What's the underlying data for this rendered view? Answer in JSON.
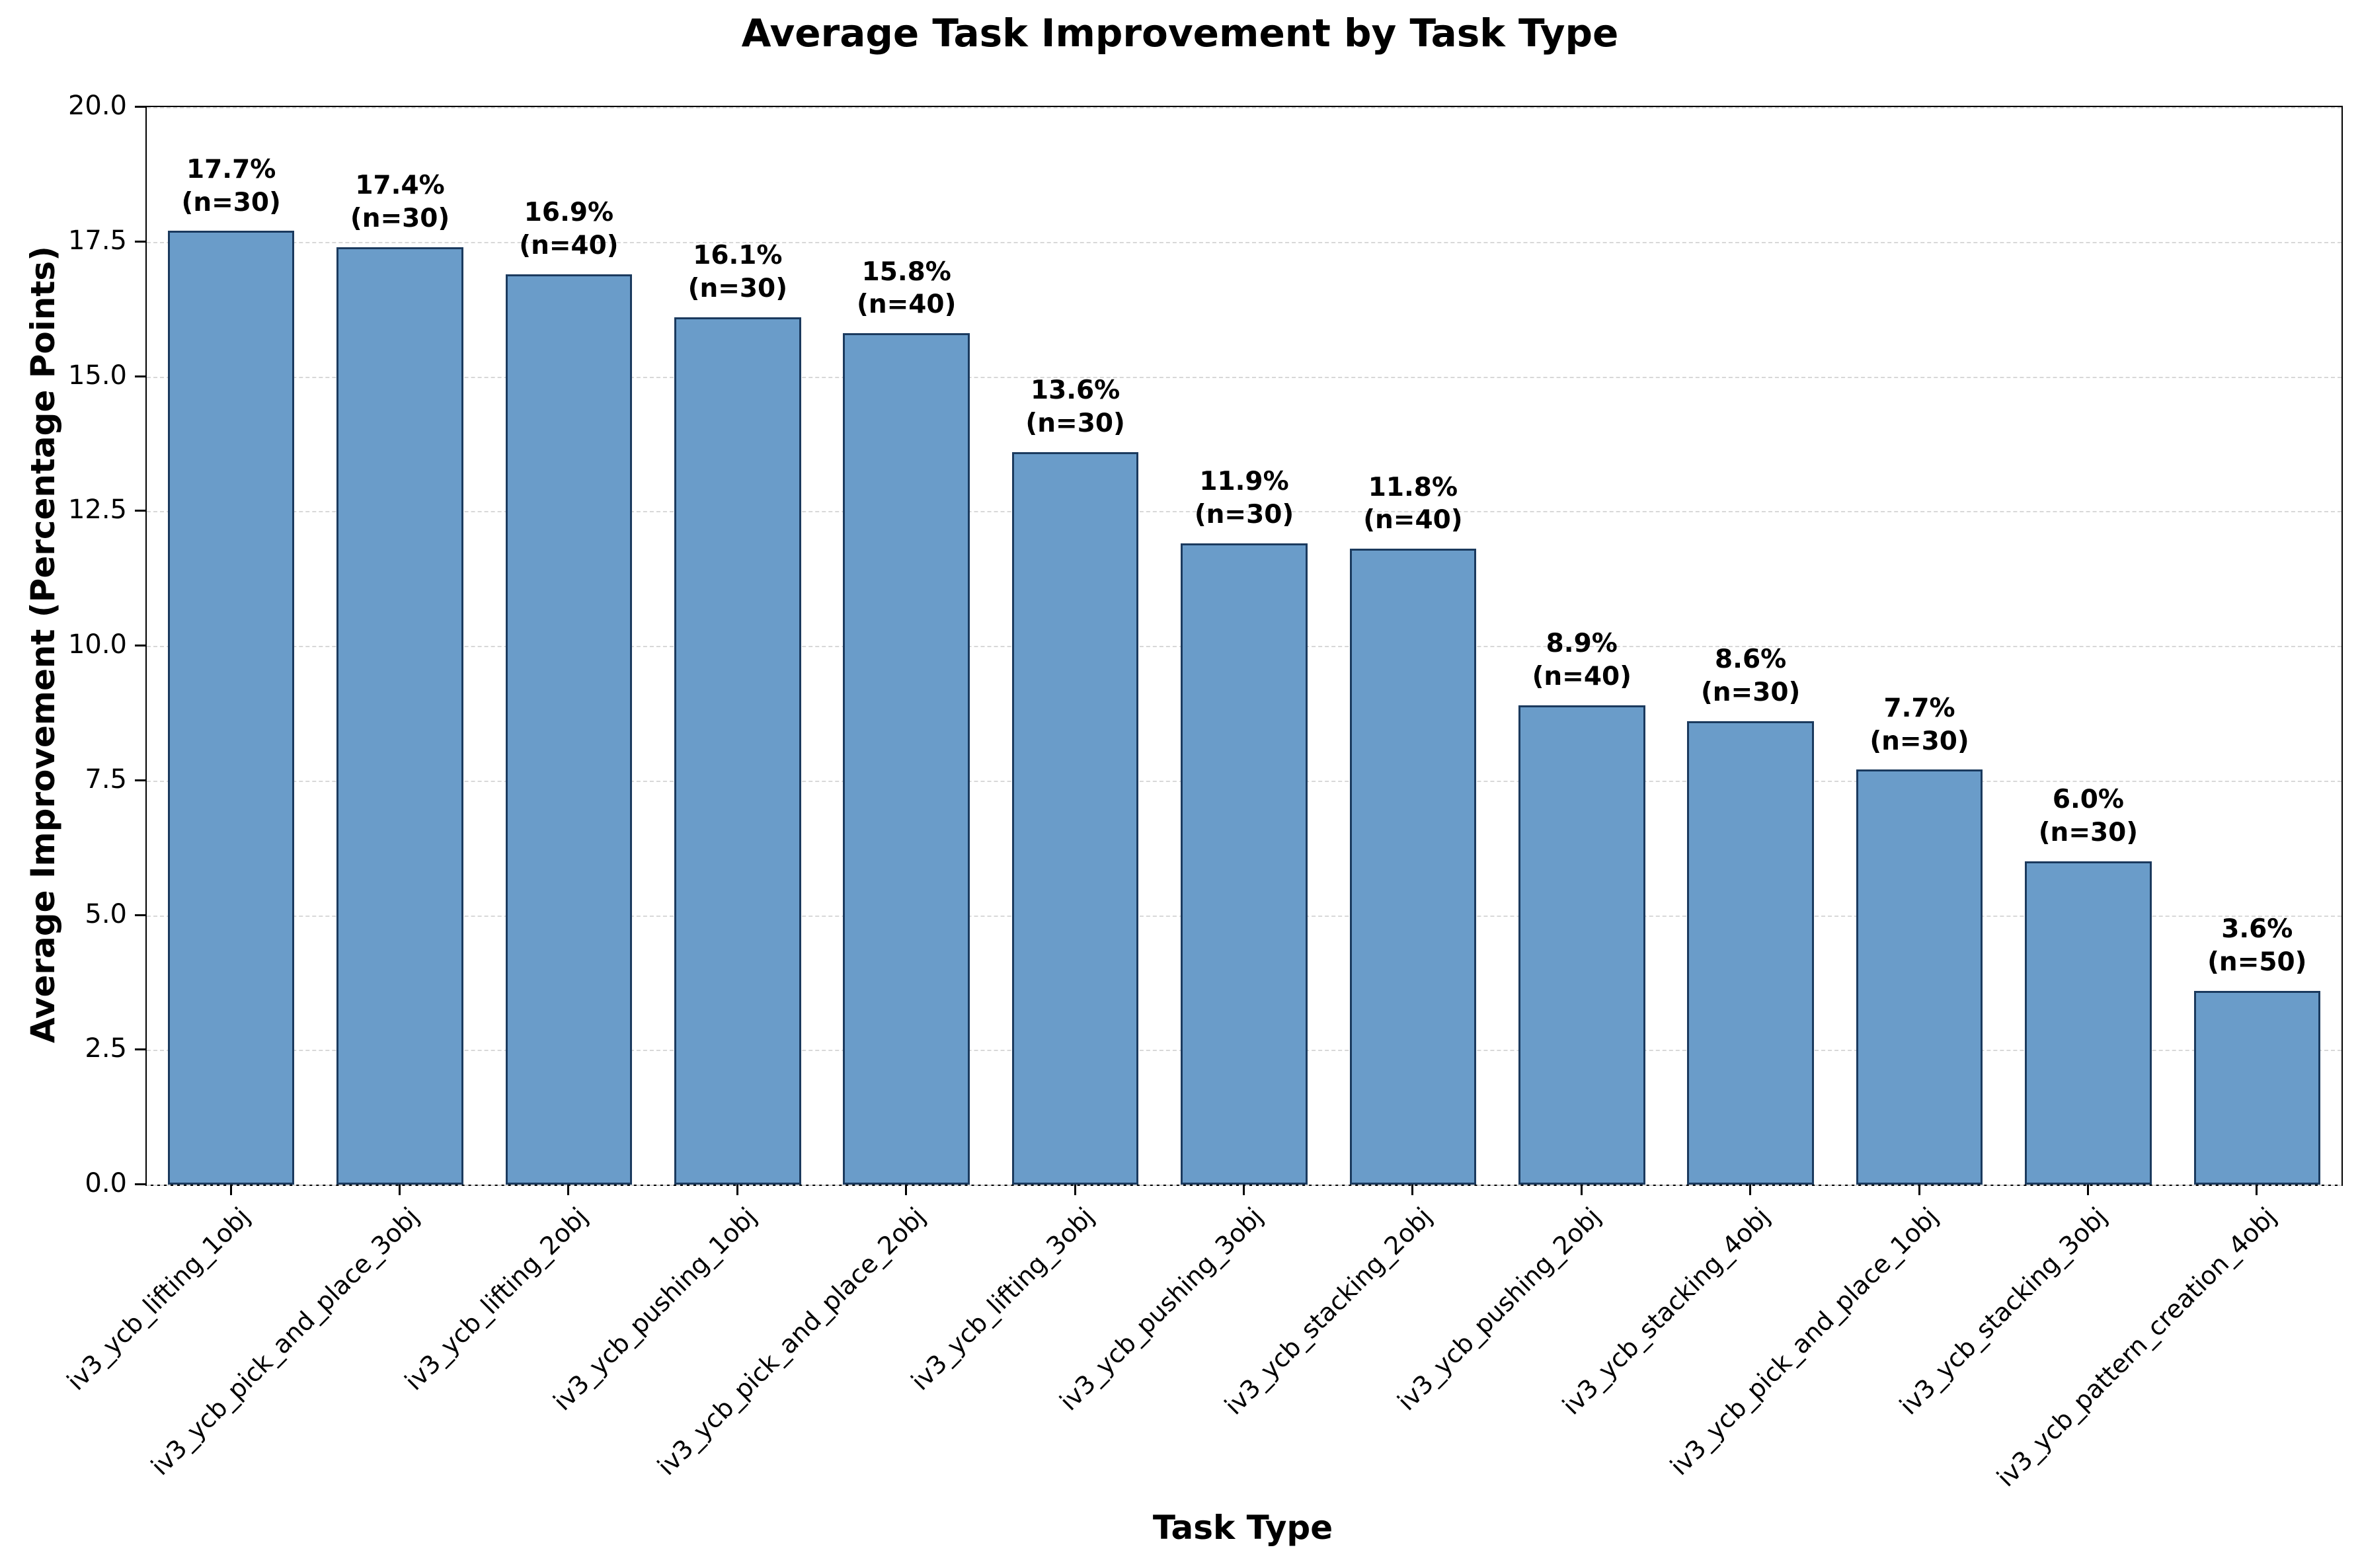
{
  "title": "Average Task Improvement by Task Type",
  "chart_data": {
    "type": "bar",
    "title": "Average Task Improvement by Task Type",
    "xlabel": "Task Type",
    "ylabel": "Average Improvement (Percentage Points)",
    "ylim": [
      0,
      20
    ],
    "ytick_labels": [
      "0.0",
      "2.5",
      "5.0",
      "7.5",
      "10.0",
      "12.5",
      "15.0",
      "17.5",
      "20.0"
    ],
    "grid": "horizontal-dashed",
    "legend": "none",
    "bar_color": "#6a9cc9",
    "bar_edge_color": "#1b3a5e",
    "categories": [
      "iv3_ycb_lifting_1obj",
      "iv3_ycb_pick_and_place_3obj",
      "iv3_ycb_lifting_2obj",
      "iv3_ycb_pushing_1obj",
      "iv3_ycb_pick_and_place_2obj",
      "iv3_ycb_lifting_3obj",
      "iv3_ycb_pushing_3obj",
      "iv3_ycb_stacking_2obj",
      "iv3_ycb_pushing_2obj",
      "iv3_ycb_stacking_4obj",
      "iv3_ycb_pick_and_place_1obj",
      "iv3_ycb_stacking_3obj",
      "iv3_ycb_pattern_creation_4obj"
    ],
    "values": [
      17.7,
      17.4,
      16.9,
      16.1,
      15.8,
      13.6,
      11.9,
      11.8,
      8.9,
      8.6,
      7.7,
      6.0,
      3.6
    ],
    "sample_sizes": [
      30,
      30,
      40,
      30,
      40,
      30,
      30,
      40,
      40,
      30,
      30,
      30,
      50
    ],
    "bar_annotations": [
      {
        "pct_label": "17.7%",
        "n_label": "(n=30)"
      },
      {
        "pct_label": "17.4%",
        "n_label": "(n=30)"
      },
      {
        "pct_label": "16.9%",
        "n_label": "(n=40)"
      },
      {
        "pct_label": "16.1%",
        "n_label": "(n=30)"
      },
      {
        "pct_label": "15.8%",
        "n_label": "(n=40)"
      },
      {
        "pct_label": "13.6%",
        "n_label": "(n=30)"
      },
      {
        "pct_label": "11.9%",
        "n_label": "(n=30)"
      },
      {
        "pct_label": "11.8%",
        "n_label": "(n=40)"
      },
      {
        "pct_label": "8.9%",
        "n_label": "(n=40)"
      },
      {
        "pct_label": "8.6%",
        "n_label": "(n=30)"
      },
      {
        "pct_label": "7.7%",
        "n_label": "(n=30)"
      },
      {
        "pct_label": "6.0%",
        "n_label": "(n=30)"
      },
      {
        "pct_label": "3.6%",
        "n_label": "(n=50)"
      }
    ]
  }
}
